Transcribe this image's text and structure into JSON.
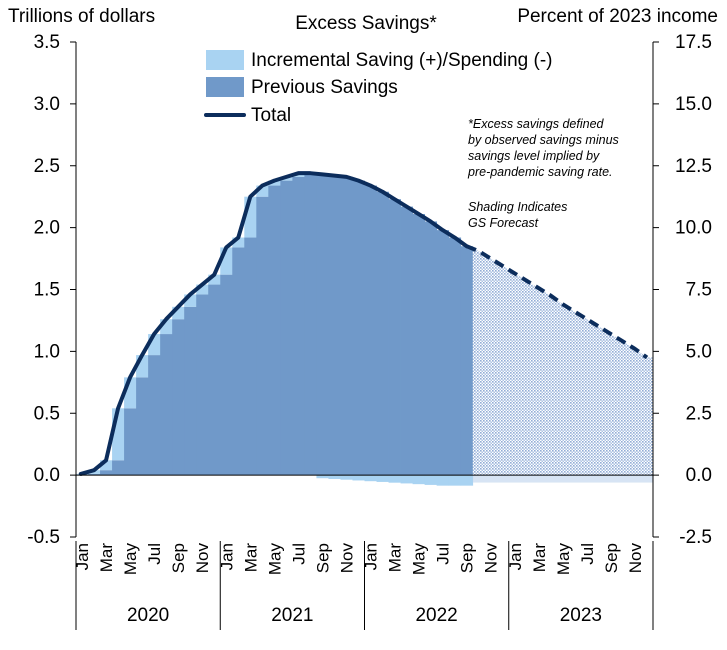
{
  "chart_data": {
    "type": "bar",
    "title": "Excess Savings*",
    "left_axis_label": "Trillions of dollars",
    "right_axis_label": "Percent of 2023 income",
    "left_ylim": [
      -0.5,
      3.5
    ],
    "left_ticks": [
      "-0.5",
      "0.0",
      "0.5",
      "1.0",
      "1.5",
      "2.0",
      "2.5",
      "3.0",
      "3.5"
    ],
    "right_ylim": [
      -2.5,
      17.5
    ],
    "right_ticks": [
      "-2.5",
      "0.0",
      "2.5",
      "5.0",
      "7.5",
      "10.0",
      "12.5",
      "15.0",
      "17.5"
    ],
    "month_labels": [
      "Jan",
      "Mar",
      "May",
      "Jul",
      "Sep",
      "Nov"
    ],
    "years": [
      "2020",
      "2021",
      "2022",
      "2023"
    ],
    "legend_position": "top",
    "legend": [
      {
        "key": "incremental",
        "label": "Incremental Saving (+)/Spending (-)",
        "color": "#a9d3f2"
      },
      {
        "key": "previous",
        "label": "Previous Savings",
        "color": "#7099c9"
      },
      {
        "key": "total",
        "label": "Total",
        "color": "#0c2d5c"
      }
    ],
    "colors": {
      "previous": "#7099c9",
      "incremental": "#a9d3f2",
      "total": "#0c2d5c",
      "forecast_shade": "#bcd2ec",
      "axis": "#000000"
    },
    "annotation": [
      "*Excess savings defined",
      "by observed savings minus",
      "savings level implied by",
      "pre-pandemic saving rate."
    ],
    "forecast_note": [
      "Shading Indicates",
      "GS Forecast"
    ],
    "forecast_start_index": 33,
    "series": [
      {
        "name": "Total",
        "values": [
          0.01,
          0.04,
          0.12,
          0.54,
          0.79,
          0.97,
          1.14,
          1.26,
          1.36,
          1.46,
          1.54,
          1.62,
          1.84,
          1.92,
          2.25,
          2.34,
          2.38,
          2.41,
          2.44,
          2.44,
          2.43,
          2.42,
          2.41,
          2.38,
          2.34,
          2.29,
          2.23,
          2.17,
          2.11,
          2.05,
          1.98,
          1.92,
          1.85,
          1.81,
          1.75,
          1.69,
          1.63,
          1.57,
          1.51,
          1.45,
          1.38,
          1.32,
          1.26,
          1.2,
          1.14,
          1.08,
          1.02,
          0.95
        ]
      }
    ],
    "xlabel": "",
    "ylabel": "Trillions of dollars"
  }
}
